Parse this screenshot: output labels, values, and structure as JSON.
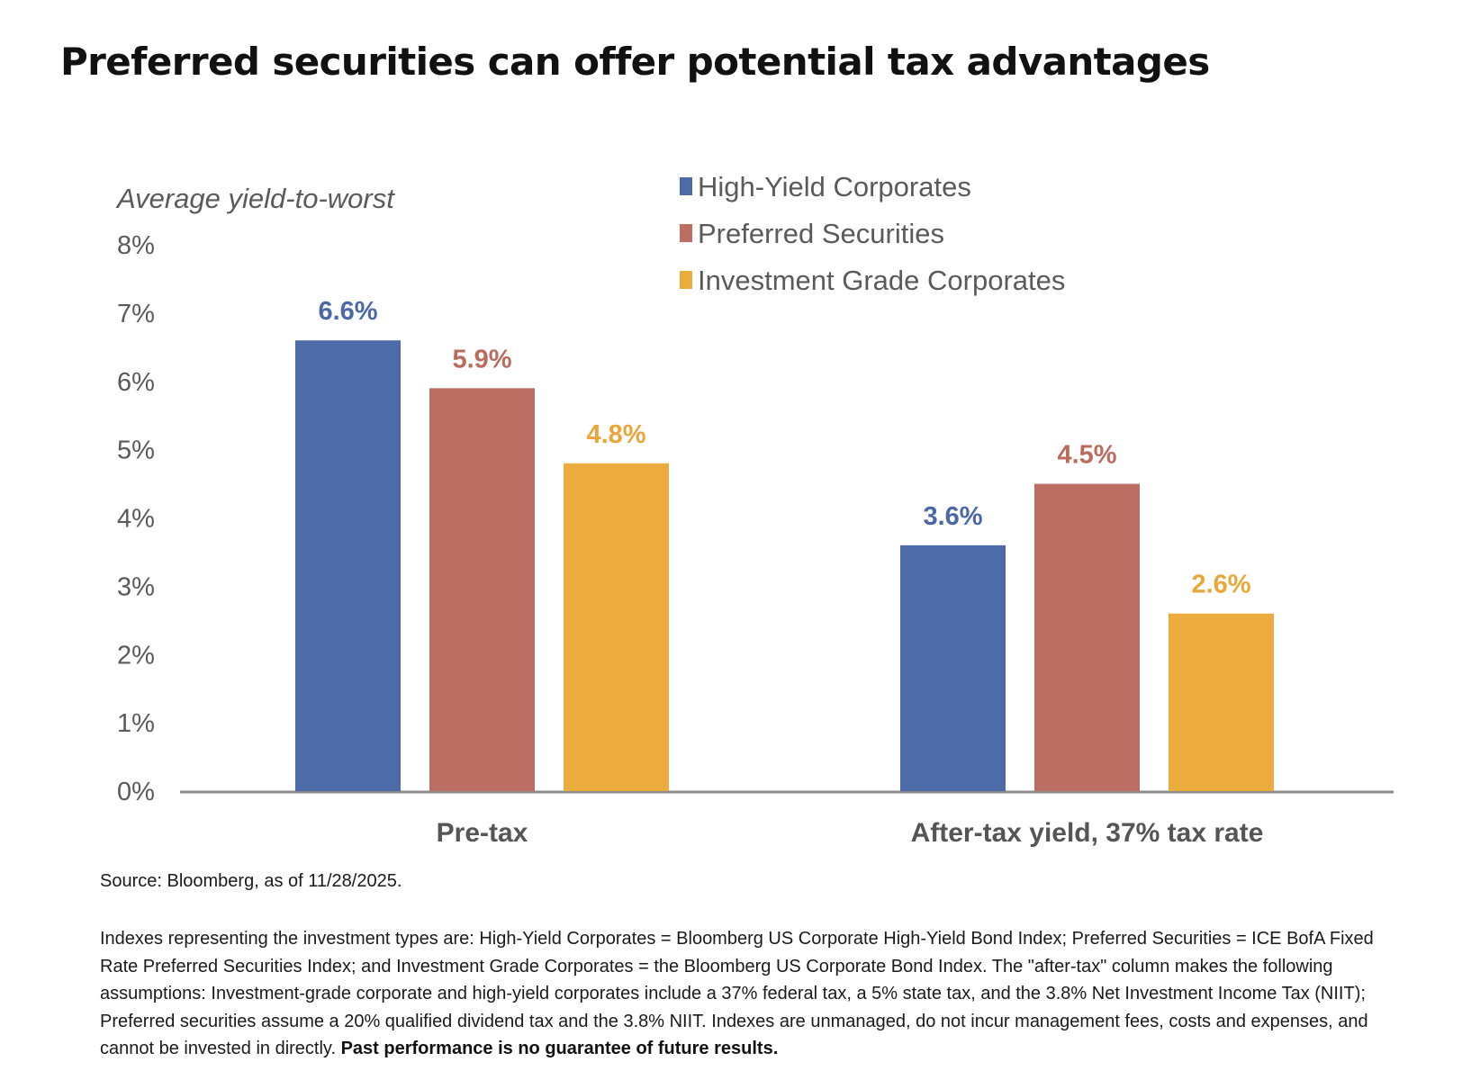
{
  "page": {
    "title": "Preferred securities can offer potential tax advantages",
    "source": "Source: Bloomberg, as of 11/28/2025.",
    "disclosure": "Indexes representing the investment types are: High-Yield Corporates = Bloomberg US Corporate High-Yield Bond Index; Preferred Securities = ICE BofA Fixed Rate Preferred Securities Index; and Investment Grade Corporates = the Bloomberg US Corporate Bond Index. The \"after-tax\" column makes the following assumptions: Investment-grade corporate and high-yield corporates include a 37% federal tax, a 5% state tax, and the 3.8% Net Investment Income Tax (NIIT); Preferred securities assume a 20% qualified dividend tax and the 3.8% NIIT. Indexes are unmanaged, do not incur management fees, costs and expenses, and cannot be invested in directly.",
    "disclosure_emphasis": "Past performance is no guarantee of future results."
  },
  "chart_data": {
    "type": "bar",
    "ylabel": "Average yield-to-worst",
    "ylim": [
      0,
      8
    ],
    "yticks": [
      0,
      1,
      2,
      3,
      4,
      5,
      6,
      7,
      8
    ],
    "ytick_labels": [
      "0%",
      "1%",
      "2%",
      "3%",
      "4%",
      "5%",
      "6%",
      "7%",
      "8%"
    ],
    "categories": [
      "Pre-tax",
      "After-tax yield, 37% tax rate"
    ],
    "series": [
      {
        "name": "High-Yield Corporates",
        "color": "#4d6ba6",
        "label_color": "#4a68a8",
        "values": [
          6.6,
          3.6
        ],
        "labels": [
          "6.6%",
          "3.6%"
        ]
      },
      {
        "name": "Preferred Securities",
        "color": "#bb6e61",
        "label_color": "#bb6b5e",
        "values": [
          5.9,
          4.5
        ],
        "labels": [
          "5.9%",
          "4.5%"
        ]
      },
      {
        "name": "Investment Grade Corporates",
        "color": "#ebab3d",
        "label_color": "#e9a73a",
        "values": [
          4.8,
          2.6
        ],
        "labels": [
          "4.8%",
          "2.6%"
        ]
      }
    ],
    "legend_position": "top-right",
    "grid": false,
    "axis_color": "#8c8c8c",
    "text_color": "#5a5a5a"
  }
}
